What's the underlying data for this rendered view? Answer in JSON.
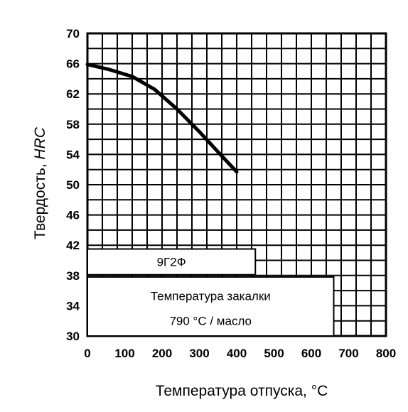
{
  "chart_data": {
    "type": "line",
    "xlabel": "Температура отпуска, °C",
    "ylabel_main": "Твердость, ",
    "ylabel_unit": "HRC",
    "xlim": [
      0,
      800
    ],
    "ylim": [
      30,
      70
    ],
    "x_ticks": [
      0,
      100,
      200,
      300,
      400,
      500,
      600,
      700,
      800
    ],
    "y_ticks": [
      30,
      34,
      38,
      42,
      46,
      50,
      54,
      58,
      62,
      66,
      70
    ],
    "grid": true,
    "series": [
      {
        "x": [
          0,
          60,
          120,
          180,
          240,
          300,
          360,
          400
        ],
        "y": [
          65.9,
          65.2,
          64.3,
          62.6,
          60.0,
          57.0,
          53.8,
          51.7
        ]
      }
    ],
    "grade_label": "9Г2Ф",
    "quench_line1": "Температура закалки",
    "quench_line2": "790 °C / масло"
  }
}
